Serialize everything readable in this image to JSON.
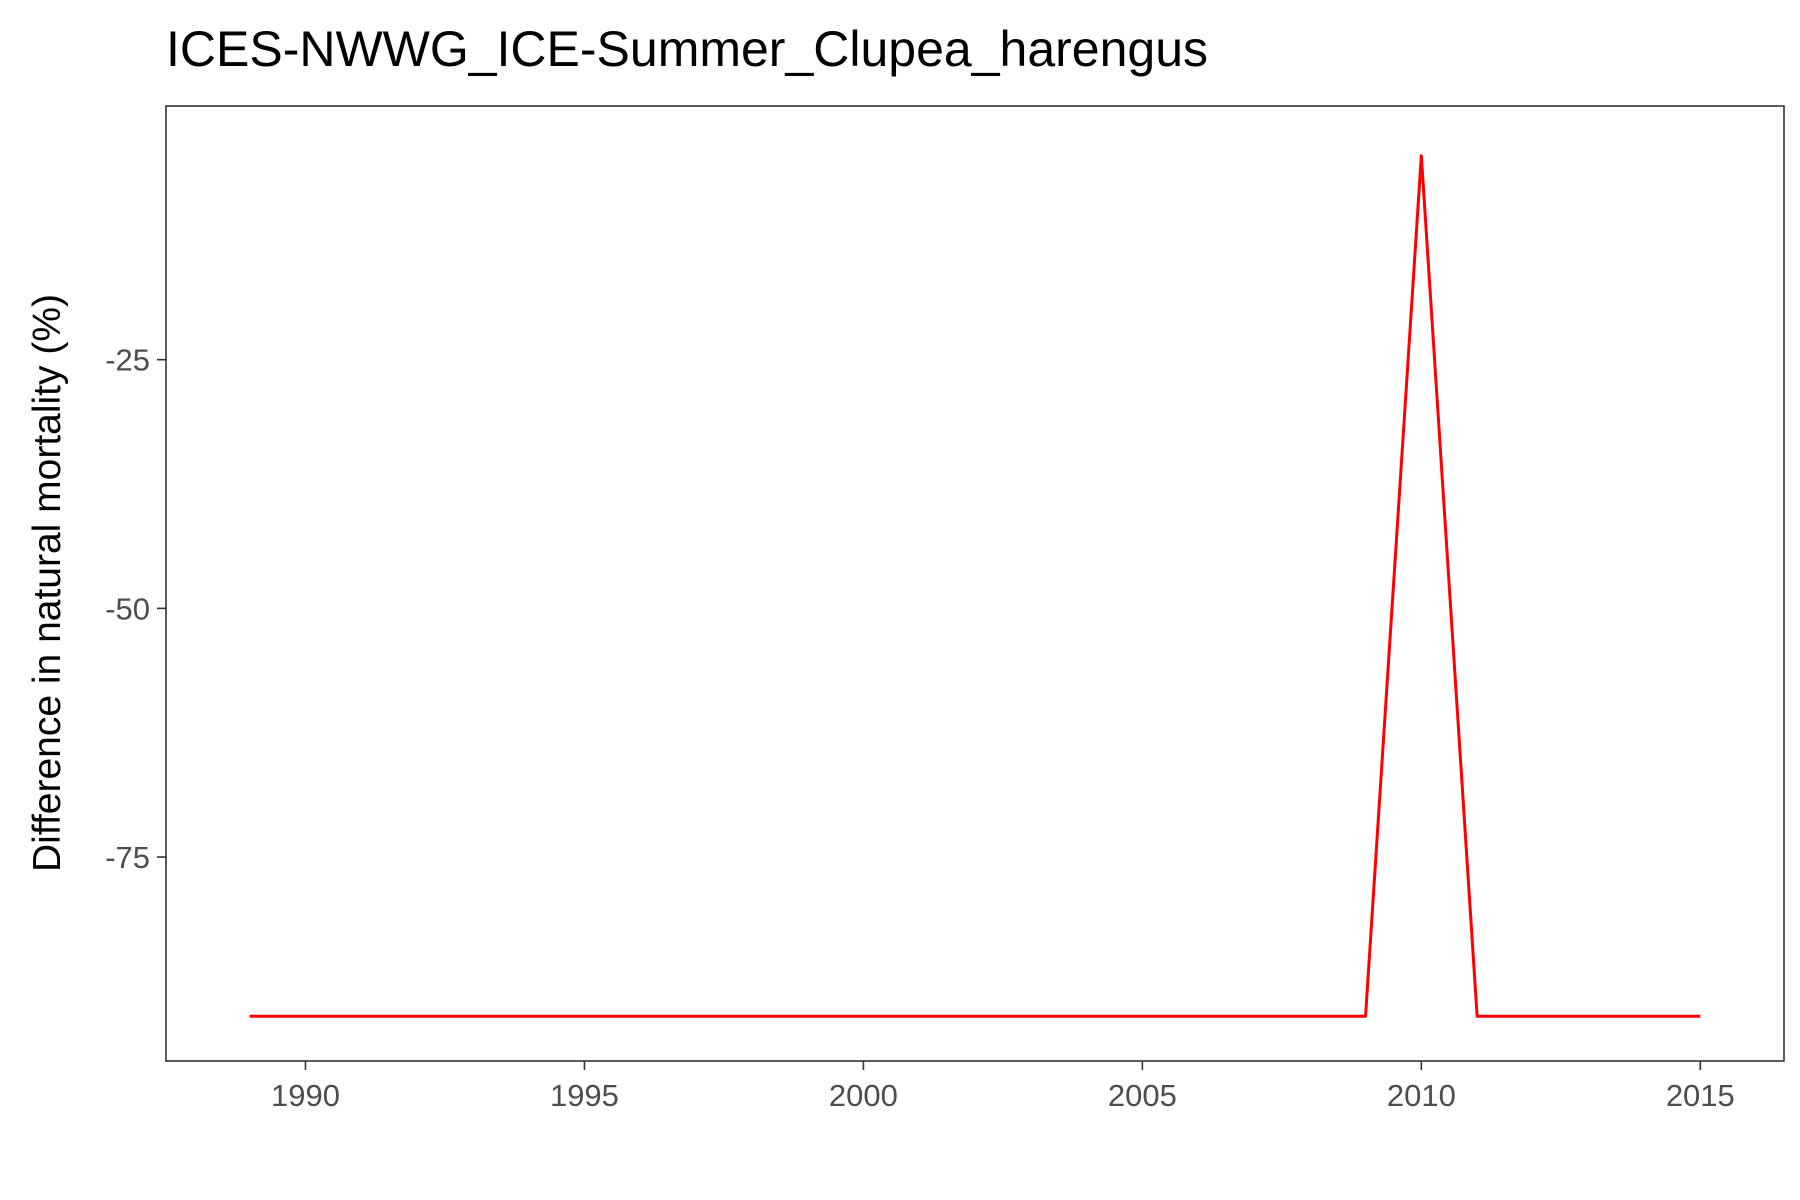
{
  "chart_data": {
    "type": "line",
    "title": "ICES-NWWG_ICE-Summer_Clupea_harengus",
    "xlabel": "",
    "ylabel": "Difference in natural mortality (%)",
    "xlim": [
      1987.5,
      2016.5
    ],
    "ylim": [
      -95.5,
      0.5
    ],
    "xticks": [
      1990,
      1995,
      2000,
      2005,
      2010,
      2015
    ],
    "yticks": [
      -75,
      -50,
      -25
    ],
    "xtick_labels": [
      "1990",
      "1995",
      "2000",
      "2005",
      "2010",
      "2015"
    ],
    "ytick_labels": [
      "-75",
      "-50",
      "-25"
    ],
    "grid": false,
    "series": [
      {
        "color": "#ff0000",
        "x": [
          1989,
          1990,
          1991,
          1992,
          1993,
          1994,
          1995,
          1996,
          1997,
          1998,
          1999,
          2000,
          2001,
          2002,
          2003,
          2004,
          2005,
          2006,
          2007,
          2008,
          2009,
          2010,
          2011,
          2012,
          2013,
          2014,
          2015
        ],
        "y": [
          -91,
          -91,
          -91,
          -91,
          -91,
          -91,
          -91,
          -91,
          -91,
          -91,
          -91,
          -91,
          -91,
          -91,
          -91,
          -91,
          -91,
          -91,
          -91,
          -91,
          -91,
          -4.5,
          -91,
          -91,
          -91,
          -91,
          -91
        ]
      }
    ]
  }
}
